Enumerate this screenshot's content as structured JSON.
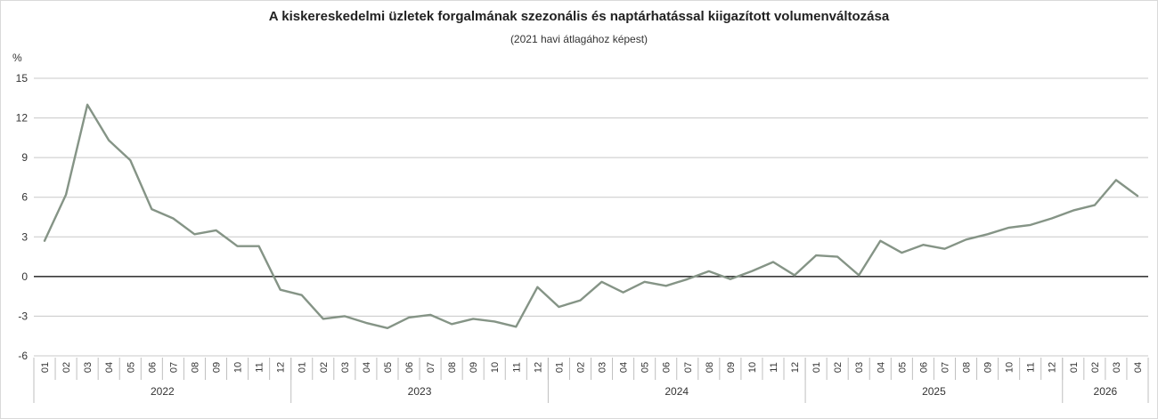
{
  "chart_data": {
    "type": "line",
    "title": "A kiskereskedelmi üzletek forgalmának szezonális és naptárhatással kiigazított volumenváltozása",
    "subtitle": "(2021 havi átlagához képest)",
    "ylabel": "%",
    "xlabel": "",
    "ylim": [
      -6,
      15
    ],
    "yticks": [
      "15",
      "12",
      "9",
      "6",
      "3",
      "0",
      "-3",
      "-6"
    ],
    "grid": true,
    "legend": "none",
    "line_color": "#859486",
    "zero_line_color": "#3a3a3a",
    "years": [
      {
        "label": "2022",
        "months": [
          "01",
          "02",
          "03",
          "04",
          "05",
          "06",
          "07",
          "08",
          "09",
          "10",
          "11",
          "12"
        ]
      },
      {
        "label": "2023",
        "months": [
          "01",
          "02",
          "03",
          "04",
          "05",
          "06",
          "07",
          "08",
          "09",
          "10",
          "11",
          "12"
        ]
      },
      {
        "label": "2024",
        "months": [
          "01",
          "02",
          "03",
          "04",
          "05",
          "06",
          "07",
          "08",
          "09",
          "10",
          "11",
          "12"
        ]
      },
      {
        "label": "2025",
        "months": [
          "01",
          "02",
          "03",
          "04",
          "05",
          "06",
          "07",
          "08",
          "09",
          "10",
          "11",
          "12"
        ]
      },
      {
        "label": "2026",
        "months": [
          "01",
          "02",
          "03",
          "04"
        ]
      }
    ],
    "series": [
      {
        "values": [
          2.7,
          6.2,
          13.0,
          10.3,
          8.8,
          5.1,
          4.4,
          3.2,
          3.5,
          2.3,
          2.3,
          -1.0,
          -1.4,
          -3.2,
          -3.0,
          -3.5,
          -3.9,
          -3.1,
          -2.9,
          -3.6,
          -3.2,
          -3.4,
          -3.8,
          -0.8,
          -2.3,
          -1.8,
          -0.4,
          -1.2,
          -0.4,
          -0.7,
          -0.2,
          0.4,
          -0.2,
          0.4,
          1.1,
          0.1,
          1.6,
          1.5,
          0.1,
          2.7,
          1.8,
          2.4,
          2.1,
          2.8,
          3.2,
          3.7,
          3.9,
          4.4,
          5.0,
          5.4,
          7.3,
          6.1
        ]
      }
    ]
  }
}
